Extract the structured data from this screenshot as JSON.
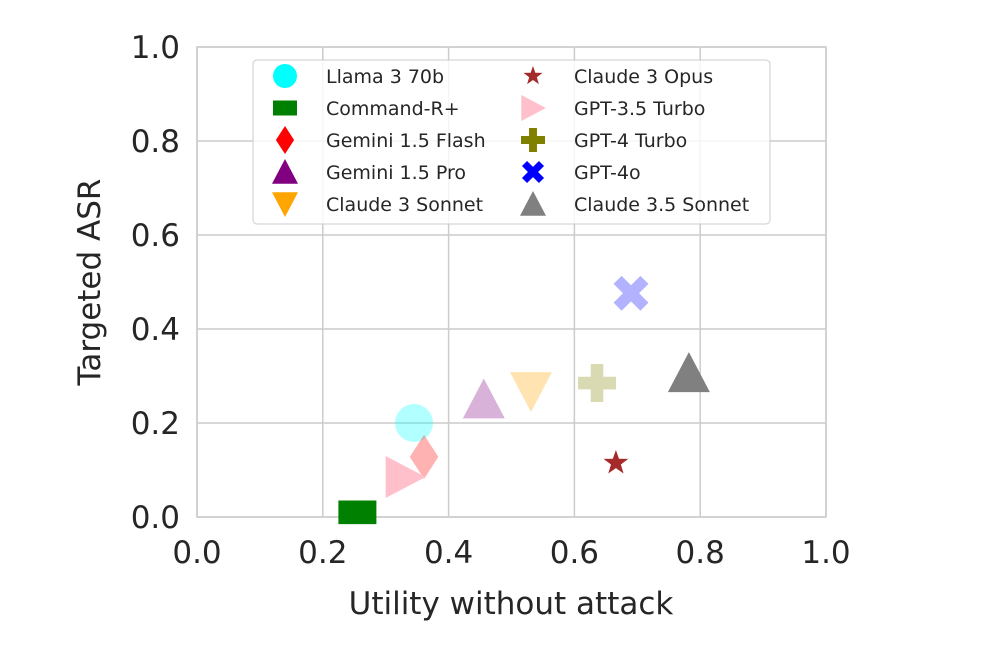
{
  "chart_data": {
    "type": "scatter",
    "title": "",
    "xlabel": "Utility without attack",
    "ylabel": "Targeted ASR",
    "xlim": [
      0.0,
      1.0
    ],
    "ylim": [
      0.0,
      1.0
    ],
    "xticks": [
      "0.0",
      "0.2",
      "0.4",
      "0.6",
      "0.8",
      "1.0"
    ],
    "yticks": [
      "0.0",
      "0.2",
      "0.4",
      "0.6",
      "0.8",
      "1.0"
    ],
    "grid": true,
    "legend_placement": "top-center",
    "series": [
      {
        "name": "Llama 3 70b",
        "x": 0.345,
        "y": 0.2,
        "marker": "circle",
        "color": "#00ffff",
        "alpha": 0.3
      },
      {
        "name": "Command-R+",
        "x": 0.255,
        "y": 0.01,
        "marker": "square",
        "color": "#008000",
        "alpha": 1.0
      },
      {
        "name": "Gemini 1.5 Flash",
        "x": 0.361,
        "y": 0.128,
        "marker": "diamond",
        "color": "#ff0000",
        "alpha": 0.3
      },
      {
        "name": "Gemini 1.5 Pro",
        "x": 0.456,
        "y": 0.25,
        "marker": "triangle-up",
        "color": "#800080",
        "alpha": 0.3
      },
      {
        "name": "Claude 3 Sonnet",
        "x": 0.531,
        "y": 0.268,
        "marker": "triangle-down",
        "color": "#ffa500",
        "alpha": 0.3
      },
      {
        "name": "Claude 3 Opus",
        "x": 0.666,
        "y": 0.115,
        "marker": "star",
        "color": "#a52a2a",
        "alpha": 1.0
      },
      {
        "name": "GPT-3.5 Turbo",
        "x": 0.33,
        "y": 0.085,
        "marker": "triangle-right",
        "color": "#ffc0cb",
        "alpha": 1.0
      },
      {
        "name": "GPT-4 Turbo",
        "x": 0.636,
        "y": 0.285,
        "marker": "plus",
        "color": "#808000",
        "alpha": 0.3
      },
      {
        "name": "GPT-4o",
        "x": 0.69,
        "y": 0.476,
        "marker": "x",
        "color": "#0000ff",
        "alpha": 0.3
      },
      {
        "name": "Claude 3.5 Sonnet",
        "x": 0.782,
        "y": 0.306,
        "marker": "triangle-up",
        "color": "#808080",
        "alpha": 1.0
      }
    ]
  }
}
